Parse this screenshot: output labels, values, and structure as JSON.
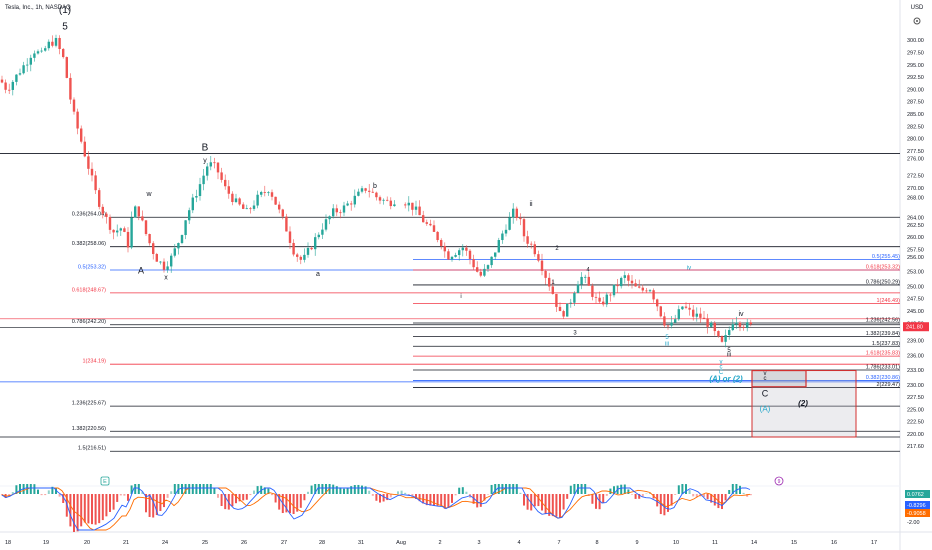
{
  "header": {
    "symbol_line": "Tesla, Inc., 1h, NASDAQ",
    "currency": "USD"
  },
  "colors": {
    "up": "#26a69a",
    "down": "#ef5350",
    "black_level": "#131722",
    "red_level": "#f23645",
    "blue_level": "#2962ff",
    "teal_label": "#22a6c9",
    "box_red": "#d32f2f",
    "macd_line": "#2962ff",
    "signal_line": "#ff6d00",
    "price_tag": "#f23645"
  },
  "chart_data": {
    "type": "candlestick",
    "y_axis": {
      "ticks": [
        300.0,
        297.5,
        295.0,
        292.5,
        290.0,
        287.5,
        285.0,
        282.5,
        280.0,
        277.5,
        276.0,
        272.5,
        270.0,
        268.0,
        264.0,
        262.5,
        260.0,
        257.5,
        256.0,
        253.0,
        250.0,
        247.5,
        245.0,
        242.5,
        239.0,
        236.0,
        233.0,
        230.0,
        227.5,
        225.0,
        222.5,
        220.0,
        217.6
      ],
      "current_price": "241.80"
    },
    "x_axis": {
      "ticks": [
        "18",
        "19",
        "20",
        "21",
        "24",
        "25",
        "26",
        "27",
        "28",
        "31",
        "Aug",
        "2",
        "3",
        "4",
        "7",
        "8",
        "9",
        "10",
        "11",
        "14",
        "15",
        "16",
        "17"
      ]
    },
    "price_path": [
      [
        0,
        292
      ],
      [
        5,
        290
      ],
      [
        10,
        292
      ],
      [
        15,
        294
      ],
      [
        20,
        296
      ],
      [
        24,
        298
      ],
      [
        30,
        297
      ],
      [
        34,
        299
      ],
      [
        40,
        300
      ],
      [
        46,
        296
      ],
      [
        52,
        286
      ],
      [
        58,
        280
      ],
      [
        64,
        274
      ],
      [
        70,
        268
      ],
      [
        76,
        264
      ],
      [
        82,
        261
      ],
      [
        88,
        262
      ],
      [
        92,
        258
      ],
      [
        96,
        266
      ],
      [
        100,
        265
      ],
      [
        106,
        260
      ],
      [
        112,
        256
      ],
      [
        118,
        254
      ],
      [
        124,
        256
      ],
      [
        130,
        260
      ],
      [
        134,
        264
      ],
      [
        140,
        268
      ],
      [
        146,
        272
      ],
      [
        150,
        275
      ],
      [
        156,
        274
      ],
      [
        162,
        270
      ],
      [
        170,
        267
      ],
      [
        178,
        265
      ],
      [
        186,
        268
      ],
      [
        194,
        270
      ],
      [
        200,
        266
      ],
      [
        206,
        262
      ],
      [
        212,
        257
      ],
      [
        218,
        255
      ],
      [
        224,
        258
      ],
      [
        232,
        262
      ],
      [
        240,
        265
      ],
      [
        248,
        266
      ],
      [
        256,
        268
      ],
      [
        264,
        270
      ],
      [
        272,
        268
      ],
      [
        280,
        267
      ],
      [
        288,
        268
      ],
      [
        298,
        266
      ],
      [
        306,
        263
      ],
      [
        312,
        261
      ],
      [
        318,
        259
      ],
      [
        322,
        256
      ],
      [
        328,
        257
      ],
      [
        334,
        258
      ],
      [
        340,
        255
      ],
      [
        346,
        252
      ],
      [
        352,
        254
      ],
      [
        358,
        258
      ],
      [
        364,
        262
      ],
      [
        370,
        265
      ],
      [
        374,
        264
      ],
      [
        378,
        260
      ],
      [
        384,
        258
      ],
      [
        388,
        256
      ],
      [
        392,
        253
      ],
      [
        398,
        249
      ],
      [
        404,
        244
      ],
      [
        410,
        246
      ],
      [
        416,
        251
      ],
      [
        420,
        252
      ],
      [
        426,
        249
      ],
      [
        432,
        246
      ],
      [
        438,
        248
      ],
      [
        444,
        250
      ],
      [
        450,
        252
      ],
      [
        456,
        250
      ],
      [
        462,
        249
      ],
      [
        468,
        250
      ],
      [
        474,
        246
      ],
      [
        480,
        242
      ],
      [
        484,
        242
      ],
      [
        488,
        244
      ],
      [
        492,
        246
      ],
      [
        496,
        245
      ],
      [
        500,
        244
      ],
      [
        504,
        244
      ],
      [
        508,
        243
      ],
      [
        512,
        242
      ],
      [
        516,
        240
      ],
      [
        520,
        238
      ],
      [
        524,
        240
      ],
      [
        528,
        243
      ],
      [
        530,
        243.5
      ],
      [
        534,
        242.5
      ],
      [
        538,
        242
      ],
      [
        542,
        241.8
      ]
    ],
    "fib_levels": [
      {
        "label": "0.236(264.04)",
        "price": 264.04,
        "color": "black",
        "group": "left"
      },
      {
        "label": "0.382(258.06)",
        "price": 258.06,
        "color": "black",
        "group": "left"
      },
      {
        "label": "0.5(253.32)",
        "price": 253.32,
        "color": "blue",
        "group": "left"
      },
      {
        "label": "0.618(248.67)",
        "price": 248.67,
        "color": "red",
        "group": "left"
      },
      {
        "label": "0.786(242.20)",
        "price": 242.2,
        "color": "black",
        "group": "left"
      },
      {
        "label": "1(234.19)",
        "price": 234.19,
        "color": "red",
        "group": "left"
      },
      {
        "label": "1.236(225.67)",
        "price": 225.67,
        "color": "black",
        "group": "left"
      },
      {
        "label": "1.382(220.56)",
        "price": 220.56,
        "color": "black",
        "group": "left"
      },
      {
        "label": "1.5(216.51)",
        "price": 216.51,
        "color": "black",
        "group": "left"
      },
      {
        "label": "0.5(255.45)",
        "price": 255.45,
        "color": "blue",
        "group": "right"
      },
      {
        "label": "0.618(253.32)",
        "price": 253.32,
        "color": "red",
        "group": "right"
      },
      {
        "label": "0.786(250.29)",
        "price": 250.29,
        "color": "black",
        "group": "right"
      },
      {
        "label": "1(246.49)",
        "price": 246.49,
        "color": "red",
        "group": "right"
      },
      {
        "label": "1.236(242.56)",
        "price": 242.56,
        "color": "black",
        "group": "right"
      },
      {
        "label": "1.382(239.84)",
        "price": 239.84,
        "color": "black",
        "group": "right"
      },
      {
        "label": "1.5(237.83)",
        "price": 237.83,
        "color": "black",
        "group": "right"
      },
      {
        "label": "1.618(235.83)",
        "price": 235.83,
        "color": "red",
        "group": "right"
      },
      {
        "label": "1.786(233.01)",
        "price": 233.01,
        "color": "black",
        "group": "right"
      },
      {
        "label": "0.382(230.86)",
        "price": 230.86,
        "color": "blue",
        "group": "right"
      },
      {
        "label": "2(229.47)",
        "price": 229.47,
        "color": "black",
        "group": "right"
      }
    ],
    "wave_labels": [
      {
        "text": "(1)",
        "x": 65,
        "price": 305.5,
        "color": "black",
        "size": 10
      },
      {
        "text": "5",
        "x": 65,
        "price": 302.2,
        "color": "black",
        "size": 10
      },
      {
        "text": "B",
        "x": 205,
        "price": 277.6,
        "color": "black",
        "size": 10
      },
      {
        "text": "y",
        "x": 205,
        "price": 275.2,
        "color": "black",
        "size": 7
      },
      {
        "text": "w",
        "x": 149,
        "price": 268.4,
        "color": "black",
        "size": 7
      },
      {
        "text": "b",
        "x": 375,
        "price": 270.0,
        "color": "black",
        "size": 7
      },
      {
        "text": "ii",
        "x": 531,
        "price": 266.3,
        "color": "black",
        "size": 7
      },
      {
        "text": "A",
        "x": 141,
        "price": 252.6,
        "color": "black",
        "size": 9
      },
      {
        "text": "x",
        "x": 166,
        "price": 251.4,
        "color": "black",
        "size": 7
      },
      {
        "text": "a",
        "x": 318,
        "price": 252.1,
        "color": "black",
        "size": 7
      },
      {
        "text": "2",
        "x": 557,
        "price": 257.4,
        "color": "black",
        "size": 6
      },
      {
        "text": "1",
        "x": 553,
        "price": 250.5,
        "color": "black",
        "size": 6
      },
      {
        "text": "4",
        "x": 588,
        "price": 253.0,
        "color": "black",
        "size": 6
      },
      {
        "text": "i",
        "x": 461,
        "price": 247.6,
        "color": "black",
        "size": 6
      },
      {
        "text": "3",
        "x": 575,
        "price": 240.2,
        "color": "black",
        "size": 6
      },
      {
        "text": "iv",
        "x": 741,
        "price": 244.0,
        "color": "black",
        "size": 7
      },
      {
        "text": "5",
        "x": 729,
        "price": 236.7,
        "color": "black",
        "size": 6
      },
      {
        "text": "iii",
        "x": 729,
        "price": 235.7,
        "color": "black",
        "size": 6
      },
      {
        "text": "iv",
        "x": 689,
        "price": 253.4,
        "color": "teal",
        "size": 6
      },
      {
        "text": "5",
        "x": 667,
        "price": 239.3,
        "color": "teal",
        "size": 6
      },
      {
        "text": "iii",
        "x": 667,
        "price": 238.0,
        "color": "teal",
        "size": 6
      },
      {
        "text": "v",
        "x": 721,
        "price": 234.3,
        "color": "teal",
        "size": 6
      },
      {
        "text": "c",
        "x": 721,
        "price": 233.3,
        "color": "teal",
        "size": 6
      },
      {
        "text": "C",
        "x": 721,
        "price": 232.2,
        "color": "teal",
        "size": 6
      },
      {
        "text": "(A) or (2)",
        "x": 726,
        "price": 230.7,
        "color": "teal",
        "size": 8,
        "italic": true
      },
      {
        "text": "v",
        "x": 765,
        "price": 232.0,
        "color": "black",
        "size": 6
      },
      {
        "text": "c",
        "x": 765,
        "price": 231.0,
        "color": "black",
        "size": 6
      },
      {
        "text": "C",
        "x": 765,
        "price": 227.6,
        "color": "black",
        "size": 9
      },
      {
        "text": "(A)",
        "x": 765,
        "price": 224.6,
        "color": "teal",
        "size": 8
      },
      {
        "text": "(2)",
        "x": 803,
        "price": 225.7,
        "color": "black",
        "size": 8,
        "italic": true
      }
    ],
    "target_box": {
      "outer": [
        232.9,
        219.4
      ],
      "inner": [
        232.9,
        229.6
      ]
    },
    "macd": {
      "values": [
        "0.0762",
        "-0.8296",
        "-0.9058"
      ],
      "axis_label": "-2.00"
    },
    "markers": {
      "left_flag": "E",
      "right_flag": "9"
    }
  }
}
